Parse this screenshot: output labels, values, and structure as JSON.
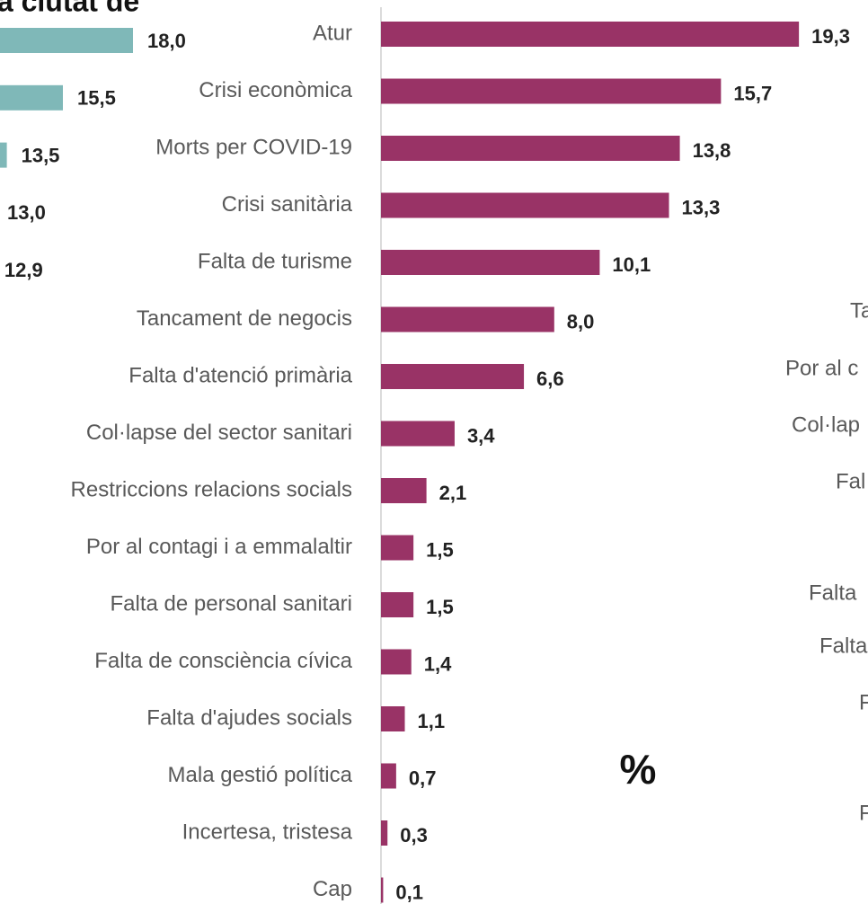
{
  "chart_data": [
    {
      "type": "bar",
      "orientation": "horizontal",
      "title": "la ciutat de",
      "color": "#7fb8b8",
      "values": [
        18.0,
        15.5,
        13.5,
        13.0,
        12.9
      ],
      "value_labels": [
        "18,0",
        "15,5",
        "13,5",
        "13,0",
        "12,9"
      ],
      "xlim": [
        0,
        18.0
      ]
    },
    {
      "type": "bar",
      "orientation": "horizontal",
      "color": "#993366",
      "x_label": "%",
      "categories": [
        "Atur",
        "Crisi econòmica",
        "Morts per COVID-19",
        "Crisi sanitària",
        "Falta de turisme",
        "Tancament de negocis",
        "Falta d'atenció primària",
        "Col·lapse del sector sanitari",
        "Restriccions relacions socials",
        "Por al contagi i a emmalaltir",
        "Falta de personal sanitari",
        "Falta de consciència cívica",
        "Falta d'ajudes socials",
        "Mala gestió política",
        "Incertesa, tristesa",
        "Cap"
      ],
      "values": [
        19.3,
        15.7,
        13.8,
        13.3,
        10.1,
        8.0,
        6.6,
        3.4,
        2.1,
        1.5,
        1.5,
        1.4,
        1.1,
        0.7,
        0.3,
        0.1
      ],
      "value_labels": [
        "19,3",
        "15,7",
        "13,8",
        "13,3",
        "10,1",
        "8,0",
        "6,6",
        "3,4",
        "2,1",
        "1,5",
        "1,5",
        "1,4",
        "1,1",
        "0,7",
        "0,3",
        "0,1"
      ],
      "xlim": [
        0,
        20
      ]
    }
  ],
  "fragments": {
    "right_labels": [
      "Ta",
      "Por al c",
      "Col·lap",
      "Fal",
      "Falta",
      "Falta",
      "F",
      "F"
    ]
  }
}
